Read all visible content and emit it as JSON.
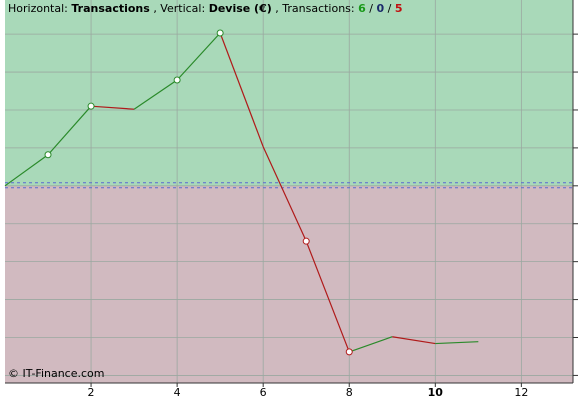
{
  "chart_data": {
    "type": "line",
    "title_parts": [
      {
        "text": "Horizontal:",
        "bold": false,
        "color": "#000000"
      },
      {
        "text": "Transactions",
        "bold": true,
        "color": "#000000"
      },
      {
        "text": ", Vertical:",
        "bold": false,
        "color": "#000000"
      },
      {
        "text": "Devise (€)",
        "bold": true,
        "color": "#000000"
      },
      {
        "text": ", Transactions:",
        "bold": false,
        "color": "#000000"
      },
      {
        "text": 6,
        "bold": true,
        "color": "#1a9a1a"
      },
      {
        "text": "/",
        "bold": false,
        "color": "#000000"
      },
      {
        "text": 0,
        "bold": true,
        "color": "#1a2a6a"
      },
      {
        "text": "/",
        "bold": false,
        "color": "#000000"
      },
      {
        "text": 5,
        "bold": true,
        "color": "#c01010"
      }
    ],
    "watermark": "© IT-Finance.com",
    "x": [
      0,
      1,
      2,
      3,
      4,
      5,
      6,
      7,
      8,
      9,
      10,
      11
    ],
    "values": [
      0,
      0.82,
      2.1,
      2.02,
      2.79,
      4.03,
      1.03,
      -1.46,
      -4.38,
      -3.98,
      -4.16,
      -4.11
    ],
    "up_color": "#2a8a2a",
    "down_color": "#b01a1a",
    "marker_indices": [
      1,
      2,
      4,
      5,
      7,
      8
    ],
    "positive_background": "#a9d9b9",
    "negative_background": "#d1bac0",
    "xlim": [
      0,
      13.2
    ],
    "ylim": [
      -5.2,
      4.9
    ],
    "xticks": [
      2,
      4,
      6,
      8,
      10,
      12
    ],
    "bold_xtick": 10,
    "yticks": [
      -5,
      -4,
      -3,
      -2,
      -1,
      0,
      1,
      2,
      3,
      4
    ],
    "grid": true
  }
}
